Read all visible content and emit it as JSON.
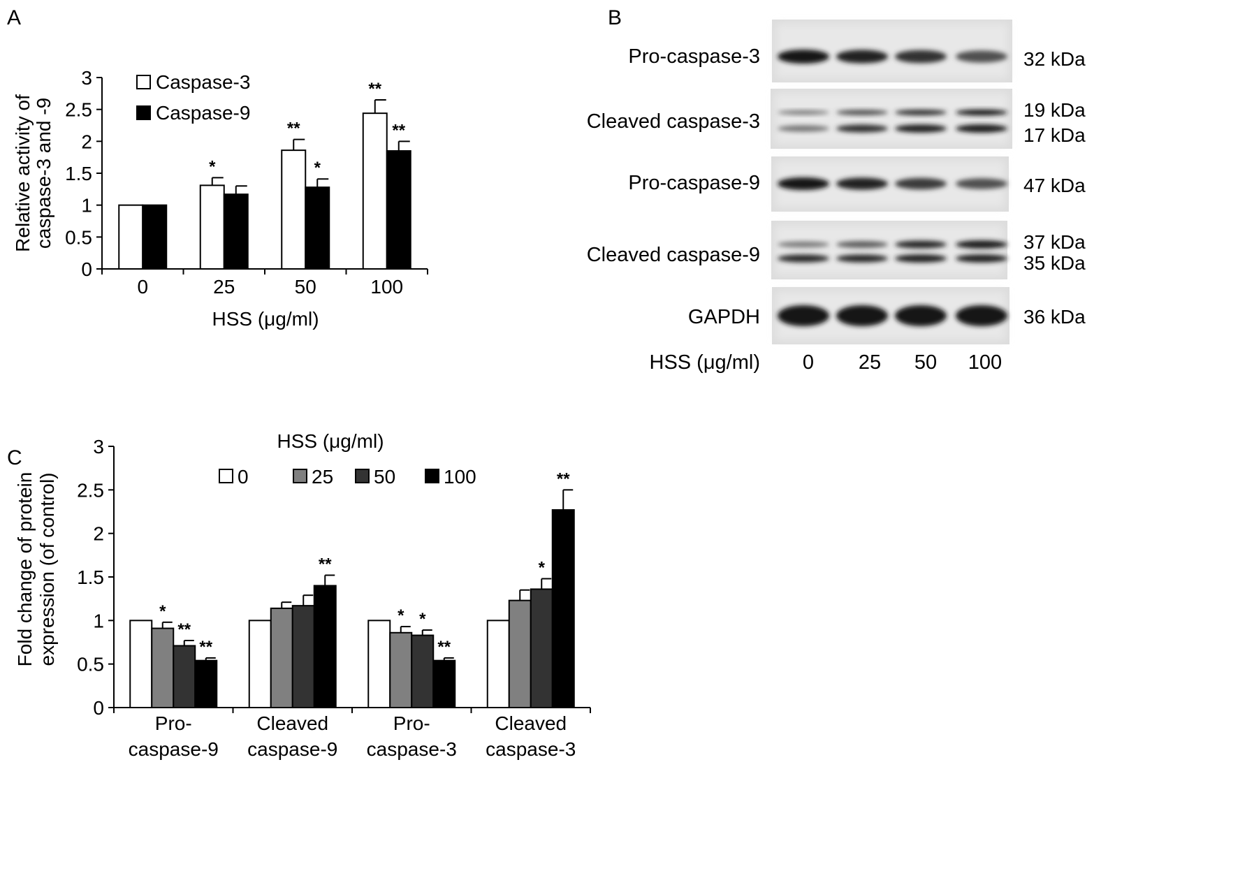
{
  "panels": {
    "A": "A",
    "B": "B",
    "C": "C"
  },
  "chart_data": [
    {
      "panel": "A",
      "type": "bar",
      "categories": [
        "0",
        "25",
        "50",
        "100"
      ],
      "xlabel": "HSS (μg/ml)",
      "ylabel_lines": [
        "Relative activity of",
        "caspase-3 and -9"
      ],
      "ylim": [
        0,
        3
      ],
      "yticks": [
        "0",
        "0.5",
        "1",
        "1.5",
        "2",
        "2.5",
        "3"
      ],
      "legend_position": "top-left",
      "series": [
        {
          "name": "Caspase-3",
          "color": "#ffffff",
          "values": [
            1.0,
            1.31,
            1.86,
            2.44
          ],
          "errors": [
            0.0,
            0.12,
            0.17,
            0.21
          ],
          "significance": [
            "",
            "*",
            "**",
            "**"
          ]
        },
        {
          "name": "Caspase-9",
          "color": "#000000",
          "values": [
            1.0,
            1.17,
            1.28,
            1.85
          ],
          "errors": [
            0.0,
            0.13,
            0.13,
            0.15
          ],
          "significance": [
            "",
            "",
            "*",
            "**"
          ]
        }
      ]
    },
    {
      "panel": "C",
      "type": "bar",
      "category_lines": [
        [
          "Pro-",
          "caspase-9"
        ],
        [
          "Cleaved",
          "caspase-9"
        ],
        [
          "Pro-",
          "caspase-3"
        ],
        [
          "Cleaved",
          "caspase-3"
        ]
      ],
      "ylabel_lines": [
        "Fold change of protein",
        "expression (of control)"
      ],
      "ylim": [
        0,
        3
      ],
      "yticks": [
        "0",
        "0.5",
        "1",
        "1.5",
        "2",
        "2.5",
        "3"
      ],
      "legend_title": "HSS (μg/ml)",
      "legend_position": "top-center",
      "series": [
        {
          "name": "0",
          "color": "#ffffff",
          "values": [
            1.0,
            1.0,
            1.0,
            1.0
          ],
          "errors": [
            0.0,
            0.0,
            0.0,
            0.0
          ],
          "significance": [
            "",
            "",
            "",
            ""
          ]
        },
        {
          "name": "25",
          "color": "#808080",
          "values": [
            0.91,
            1.14,
            0.86,
            1.23
          ],
          "errors": [
            0.07,
            0.07,
            0.07,
            0.12
          ],
          "significance": [
            "*",
            "",
            "*",
            ""
          ]
        },
        {
          "name": "50",
          "color": "#333333",
          "values": [
            0.71,
            1.17,
            0.83,
            1.36
          ],
          "errors": [
            0.06,
            0.12,
            0.06,
            0.12
          ],
          "significance": [
            "**",
            "",
            "*",
            "*"
          ]
        },
        {
          "name": "100",
          "color": "#000000",
          "values": [
            0.54,
            1.4,
            0.54,
            2.27
          ],
          "errors": [
            0.03,
            0.12,
            0.03,
            0.23
          ],
          "significance": [
            "**",
            "**",
            "**",
            "**"
          ]
        }
      ]
    }
  ],
  "blot": {
    "rows": [
      {
        "label": "Pro-caspase-3",
        "kda": [
          "32 kDa"
        ],
        "band_intensity": [
          [
            1.0,
            0.9,
            0.8,
            0.6
          ]
        ]
      },
      {
        "label": "Cleaved caspase-3",
        "kda": [
          "19 kDa",
          "17 kDa"
        ],
        "band_intensity": [
          [
            0.3,
            0.6,
            0.8,
            0.95
          ],
          [
            0.35,
            0.8,
            0.9,
            0.95
          ]
        ]
      },
      {
        "label": "Pro-caspase-9",
        "kda": [
          "47 kDa"
        ],
        "band_intensity": [
          [
            1.0,
            0.9,
            0.75,
            0.6
          ]
        ]
      },
      {
        "label": "Cleaved caspase-9",
        "kda": [
          "37 kDa",
          "35 kDa"
        ],
        "band_intensity": [
          [
            0.3,
            0.5,
            0.85,
            0.95
          ],
          [
            0.85,
            0.85,
            0.9,
            0.9
          ]
        ]
      },
      {
        "label": "GAPDH",
        "kda": [
          "36 kDa"
        ],
        "band_intensity": [
          [
            1.0,
            1.0,
            1.0,
            1.0
          ]
        ]
      }
    ],
    "xlabel": "HSS (μg/ml)",
    "lanes": [
      "0",
      "25",
      "50",
      "100"
    ]
  }
}
